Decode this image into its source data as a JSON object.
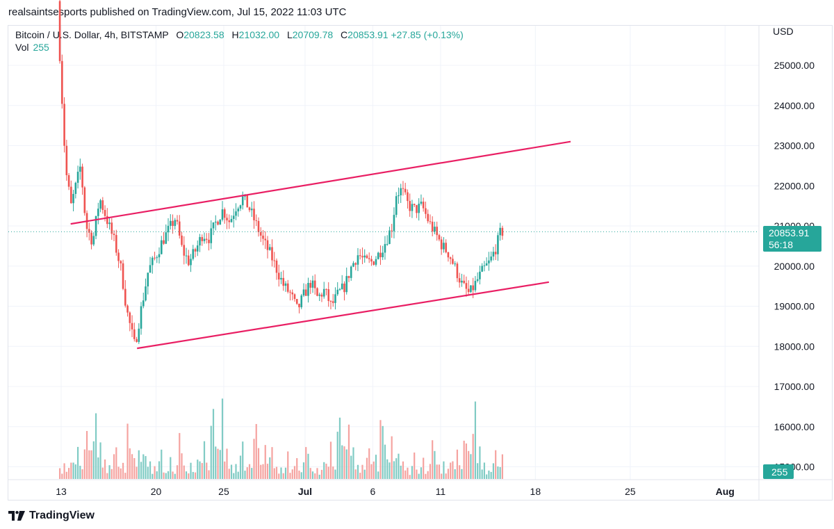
{
  "header": {
    "publish_text": "realsaintsesports published on TradingView.com, Jul 15, 2022 11:03 UTC"
  },
  "legend": {
    "symbol": "Bitcoin / U.S. Dollar, 4h, BITSTAMP",
    "o_label": "O",
    "o_value": "20823.58",
    "h_label": "H",
    "h_value": "21032.00",
    "l_label": "L",
    "l_value": "20709.78",
    "c_label": "C",
    "c_value": "20853.91",
    "change": "+27.85 (+0.13%)",
    "vol_label": "Vol",
    "vol_value": "255"
  },
  "footer": {
    "brand": "TradingView"
  },
  "chart_data": {
    "type": "candlestick",
    "currency_label": "USD",
    "y_ticks": [
      "25000.00",
      "24000.00",
      "23000.00",
      "22000.00",
      "21000.00",
      "20000.00",
      "19000.00",
      "18000.00",
      "17000.00",
      "16000.00",
      "15000.00"
    ],
    "y_tick_values": [
      25000,
      24000,
      23000,
      22000,
      21000,
      20000,
      19000,
      18000,
      17000,
      16000,
      15000
    ],
    "ylim": [
      14850,
      26000
    ],
    "x_ticks": [
      "13",
      "20",
      "25",
      "Jul",
      "6",
      "11",
      "18",
      "25",
      "Aug"
    ],
    "x_tick_days": [
      13,
      20,
      25,
      31,
      36,
      41,
      48,
      55,
      62
    ],
    "x_range_days": [
      9.1,
      64.5
    ],
    "last_price_label": "20853.91",
    "countdown_label": "56:18",
    "last_price": 20853.91,
    "volume_label": "255",
    "colors": {
      "up": "#26a69a",
      "down": "#ef5350",
      "trendline": "#e91e63",
      "vol_up": "#80cbc4",
      "vol_down": "#f5a3a0"
    },
    "anchors": [
      [
        12.6,
        29000
      ],
      [
        13.1,
        25000
      ],
      [
        13.5,
        22400
      ],
      [
        13.9,
        21500
      ],
      [
        14.6,
        22500
      ],
      [
        15.0,
        21000
      ],
      [
        15.5,
        20600
      ],
      [
        16.0,
        21700
      ],
      [
        16.6,
        21100
      ],
      [
        17.1,
        20600
      ],
      [
        17.6,
        19900
      ],
      [
        18.0,
        18900
      ],
      [
        18.6,
        18000
      ],
      [
        19.0,
        18800
      ],
      [
        19.6,
        19900
      ],
      [
        20.1,
        20200
      ],
      [
        20.6,
        20600
      ],
      [
        21.1,
        20900
      ],
      [
        21.6,
        21200
      ],
      [
        22.1,
        20400
      ],
      [
        22.6,
        20100
      ],
      [
        23.1,
        20400
      ],
      [
        23.6,
        20800
      ],
      [
        24.1,
        20700
      ],
      [
        24.6,
        21100
      ],
      [
        25.1,
        21400
      ],
      [
        25.6,
        21100
      ],
      [
        26.1,
        21500
      ],
      [
        26.6,
        21700
      ],
      [
        27.1,
        21400
      ],
      [
        27.6,
        21000
      ],
      [
        28.1,
        20600
      ],
      [
        28.6,
        20300
      ],
      [
        29.1,
        19900
      ],
      [
        29.6,
        19500
      ],
      [
        30.1,
        19300
      ],
      [
        30.6,
        18900
      ],
      [
        31.1,
        19300
      ],
      [
        31.6,
        19600
      ],
      [
        32.1,
        19200
      ],
      [
        32.6,
        19400
      ],
      [
        33.1,
        19000
      ],
      [
        33.6,
        19300
      ],
      [
        34.1,
        19500
      ],
      [
        34.6,
        20000
      ],
      [
        35.1,
        20300
      ],
      [
        35.6,
        20100
      ],
      [
        36.1,
        20100
      ],
      [
        36.6,
        20300
      ],
      [
        37.1,
        20600
      ],
      [
        37.6,
        21000
      ],
      [
        37.9,
        21800
      ],
      [
        38.3,
        21900
      ],
      [
        38.8,
        21500
      ],
      [
        39.3,
        21400
      ],
      [
        39.8,
        21500
      ],
      [
        40.3,
        21100
      ],
      [
        40.8,
        20800
      ],
      [
        41.3,
        20500
      ],
      [
        41.8,
        20300
      ],
      [
        42.3,
        19900
      ],
      [
        42.8,
        19500
      ],
      [
        43.3,
        19300
      ],
      [
        43.8,
        19600
      ],
      [
        44.3,
        19900
      ],
      [
        44.8,
        20100
      ],
      [
        45.3,
        20500
      ],
      [
        45.6,
        20850
      ]
    ],
    "volume_relative": [
      0.15,
      0.1,
      0.2,
      0.08,
      0.12,
      0.3,
      0.25,
      0.18,
      0.45,
      0.2,
      0.15,
      0.55,
      0.7,
      0.4,
      0.35,
      0.5,
      0.85,
      0.3,
      0.45,
      0.12,
      0.2,
      0.08,
      0.15,
      0.1,
      0.3,
      0.45,
      0.15,
      0.2,
      0.25,
      0.12,
      0.6,
      0.55,
      0.4,
      0.25,
      0.2,
      0.45,
      0.3,
      0.28,
      0.35,
      0.15,
      0.2,
      0.1,
      0.14,
      0.08,
      0.2,
      0.3,
      0.12,
      0.1,
      0.15,
      0.22,
      0.1,
      0.08,
      0.18,
      0.5,
      0.3,
      0.15
    ],
    "trendlines": [
      {
        "name": "upper-channel",
        "from": [
          13.7,
          21050
        ],
        "to": [
          50.6,
          23100
        ]
      },
      {
        "name": "lower-channel",
        "from": [
          18.6,
          17950
        ],
        "to": [
          49.0,
          19600
        ]
      }
    ]
  }
}
